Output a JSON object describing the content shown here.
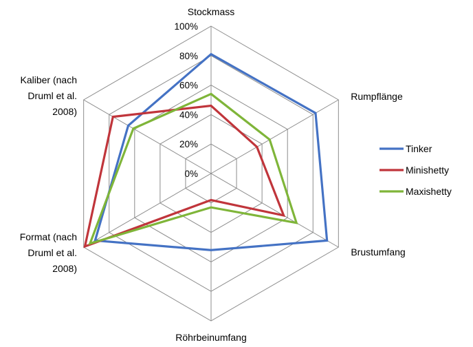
{
  "chart_data": {
    "type": "radar",
    "axes": [
      "Stockmass",
      "Rumpflänge",
      "Brustumfang",
      "Röhrbeinumfang",
      "Format (nach Druml et al. 2008)",
      "Kaliber (nach Druml et al. 2008)"
    ],
    "axis_label_lines": [
      [
        "Stockmass"
      ],
      [
        "Rumpflänge"
      ],
      [
        "Brustumfang"
      ],
      [
        "Röhrbeinumfang"
      ],
      [
        "Format (nach",
        "Druml et al.",
        "2008)"
      ],
      [
        "Kaliber (nach",
        "Druml et al.",
        "2008)"
      ]
    ],
    "ticks": [
      "0%",
      "20%",
      "40%",
      "60%",
      "80%",
      "100%"
    ],
    "range": [
      0,
      100
    ],
    "series": [
      {
        "name": "Tinker",
        "values": [
          81,
          82,
          91,
          52,
          91,
          65
        ]
      },
      {
        "name": "Minishetty",
        "values": [
          46,
          36,
          57,
          18,
          99,
          77
        ]
      },
      {
        "name": "Maxishetty",
        "values": [
          54,
          46,
          67,
          23,
          95,
          61
        ]
      }
    ],
    "colors": {
      "Tinker": "#4472c4",
      "Minishetty": "#c0353b",
      "Maxishetty": "#7fb539",
      "grid": "#8c8c8c"
    },
    "legend": "right",
    "grid": true
  }
}
